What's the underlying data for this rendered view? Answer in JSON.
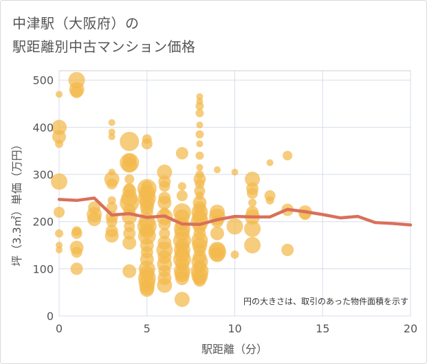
{
  "title_line1": "中津駅（大阪府）の",
  "title_line2": "駅距離別中古マンション価格",
  "chart_data": {
    "type": "scatter",
    "xlabel": "駅距離（分）",
    "ylabel": "坪（3.3㎡）単価（万円）",
    "xlim": [
      0,
      20
    ],
    "ylim": [
      0,
      520
    ],
    "xticks": [
      0,
      5,
      10,
      15,
      20
    ],
    "yticks": [
      0,
      100,
      200,
      300,
      400,
      500
    ],
    "grid": true,
    "note": "円の大きさは、取引のあった物件面積を示す",
    "bubble_color": "#f2b84b",
    "line_color": "#d9705a",
    "points": [
      [
        0,
        470,
        5
      ],
      [
        0,
        400,
        11
      ],
      [
        0,
        380,
        10
      ],
      [
        0,
        365,
        6
      ],
      [
        0,
        285,
        12
      ],
      [
        0,
        220,
        8
      ],
      [
        0,
        175,
        6
      ],
      [
        0,
        150,
        5
      ],
      [
        0,
        140,
        5
      ],
      [
        1,
        500,
        12
      ],
      [
        1,
        480,
        11
      ],
      [
        1,
        475,
        9
      ],
      [
        1,
        180,
        7
      ],
      [
        1,
        175,
        8
      ],
      [
        1,
        145,
        10
      ],
      [
        1,
        135,
        8
      ],
      [
        1,
        100,
        9
      ],
      [
        2,
        230,
        9
      ],
      [
        2,
        215,
        11
      ],
      [
        2,
        205,
        10
      ],
      [
        3,
        410,
        5
      ],
      [
        3,
        390,
        5
      ],
      [
        3,
        380,
        5
      ],
      [
        3,
        305,
        5
      ],
      [
        3,
        290,
        11
      ],
      [
        3,
        280,
        8
      ],
      [
        3,
        245,
        6
      ],
      [
        3,
        230,
        8
      ],
      [
        3,
        210,
        9
      ],
      [
        3,
        200,
        8
      ],
      [
        3,
        180,
        9
      ],
      [
        3,
        170,
        10
      ],
      [
        4,
        370,
        14
      ],
      [
        4,
        330,
        10
      ],
      [
        4,
        325,
        14
      ],
      [
        4,
        320,
        11
      ],
      [
        4,
        290,
        7
      ],
      [
        4,
        270,
        8
      ],
      [
        4,
        265,
        10
      ],
      [
        4,
        250,
        12
      ],
      [
        4,
        240,
        14
      ],
      [
        4,
        225,
        9
      ],
      [
        4,
        210,
        11
      ],
      [
        4,
        190,
        8
      ],
      [
        4,
        175,
        9
      ],
      [
        4,
        155,
        10
      ],
      [
        4,
        95,
        10
      ],
      [
        5,
        375,
        7
      ],
      [
        5,
        365,
        8
      ],
      [
        5,
        275,
        8
      ],
      [
        5,
        270,
        14
      ],
      [
        5,
        260,
        12
      ],
      [
        5,
        250,
        13
      ],
      [
        5,
        240,
        11
      ],
      [
        5,
        230,
        10
      ],
      [
        5,
        220,
        9
      ],
      [
        5,
        200,
        12
      ],
      [
        5,
        190,
        14
      ],
      [
        5,
        180,
        11
      ],
      [
        5,
        170,
        13
      ],
      [
        5,
        150,
        10
      ],
      [
        5,
        135,
        9
      ],
      [
        5,
        120,
        10
      ],
      [
        5,
        100,
        12
      ],
      [
        5,
        90,
        11
      ],
      [
        5,
        80,
        13
      ],
      [
        5,
        70,
        12
      ],
      [
        5,
        60,
        11
      ],
      [
        5,
        55,
        10
      ],
      [
        6,
        305,
        11
      ],
      [
        6,
        285,
        9
      ],
      [
        6,
        275,
        8
      ],
      [
        6,
        250,
        9
      ],
      [
        6,
        240,
        10
      ],
      [
        6,
        220,
        7
      ],
      [
        6,
        210,
        12
      ],
      [
        6,
        195,
        9
      ],
      [
        6,
        175,
        8
      ],
      [
        6,
        155,
        10
      ],
      [
        6,
        140,
        12
      ],
      [
        6,
        125,
        10
      ],
      [
        6,
        110,
        11
      ],
      [
        6,
        95,
        9
      ],
      [
        6,
        80,
        10
      ],
      [
        6,
        65,
        11
      ],
      [
        7,
        345,
        9
      ],
      [
        7,
        275,
        6
      ],
      [
        7,
        255,
        8
      ],
      [
        7,
        220,
        13
      ],
      [
        7,
        210,
        11
      ],
      [
        7,
        195,
        10
      ],
      [
        7,
        185,
        12
      ],
      [
        7,
        175,
        11
      ],
      [
        7,
        160,
        13
      ],
      [
        7,
        150,
        10
      ],
      [
        7,
        140,
        12
      ],
      [
        7,
        130,
        11
      ],
      [
        7,
        120,
        13
      ],
      [
        7,
        110,
        10
      ],
      [
        7,
        95,
        12
      ],
      [
        7,
        88,
        11
      ],
      [
        7,
        80,
        10
      ],
      [
        7,
        35,
        11
      ],
      [
        8,
        465,
        5
      ],
      [
        8,
        455,
        5
      ],
      [
        8,
        445,
        6
      ],
      [
        8,
        430,
        6
      ],
      [
        8,
        405,
        5
      ],
      [
        8,
        385,
        6
      ],
      [
        8,
        365,
        5
      ],
      [
        8,
        340,
        6
      ],
      [
        8,
        315,
        5
      ],
      [
        8,
        300,
        6
      ],
      [
        8,
        290,
        9
      ],
      [
        8,
        280,
        7
      ],
      [
        8,
        265,
        8
      ],
      [
        8,
        255,
        6
      ],
      [
        8,
        240,
        10
      ],
      [
        8,
        230,
        9
      ],
      [
        8,
        220,
        12
      ],
      [
        8,
        210,
        11
      ],
      [
        8,
        200,
        13
      ],
      [
        8,
        190,
        10
      ],
      [
        8,
        175,
        9
      ],
      [
        8,
        160,
        12
      ],
      [
        8,
        150,
        11
      ],
      [
        8,
        140,
        9
      ],
      [
        8,
        125,
        10
      ],
      [
        8,
        115,
        12
      ],
      [
        8,
        105,
        9
      ],
      [
        8,
        95,
        13
      ],
      [
        8,
        85,
        12
      ],
      [
        8,
        80,
        10
      ],
      [
        8,
        75,
        9
      ],
      [
        9,
        310,
        5
      ],
      [
        9,
        220,
        11
      ],
      [
        9,
        210,
        12
      ],
      [
        9,
        200,
        9
      ],
      [
        9,
        175,
        10
      ],
      [
        9,
        140,
        12
      ],
      [
        9,
        135,
        13
      ],
      [
        9,
        130,
        11
      ],
      [
        10,
        305,
        5
      ],
      [
        10,
        190,
        12
      ],
      [
        10,
        130,
        6
      ],
      [
        11,
        290,
        11
      ],
      [
        11,
        270,
        9
      ],
      [
        11,
        260,
        8
      ],
      [
        11,
        240,
        6
      ],
      [
        11,
        220,
        9
      ],
      [
        11,
        210,
        11
      ],
      [
        11,
        185,
        12
      ],
      [
        11,
        150,
        12
      ],
      [
        12,
        325,
        5
      ],
      [
        12,
        255,
        8
      ],
      [
        12,
        245,
        6
      ],
      [
        13,
        340,
        7
      ],
      [
        13,
        225,
        9
      ],
      [
        13,
        140,
        9
      ],
      [
        14,
        220,
        10
      ],
      [
        14,
        215,
        8
      ]
    ],
    "line_x": [
      0,
      1,
      2,
      3,
      4,
      5,
      6,
      7,
      8,
      9,
      10,
      11,
      12,
      13,
      14,
      15,
      16,
      17,
      18,
      19,
      20
    ],
    "line_y": [
      247,
      245,
      250,
      214,
      217,
      209,
      212,
      195,
      194,
      204,
      211,
      210,
      210,
      226,
      221,
      215,
      208,
      211,
      198,
      196,
      193
    ]
  }
}
